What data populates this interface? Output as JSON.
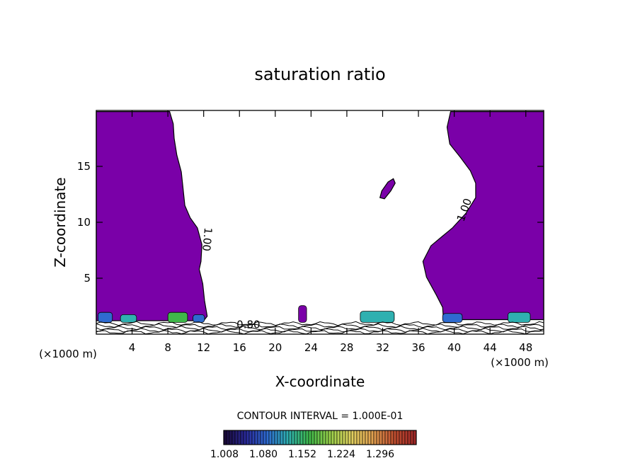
{
  "chart_data": {
    "type": "heatmap",
    "title": "saturation ratio",
    "xlabel": "X-coordinate",
    "ylabel": "Z-coordinate",
    "x_unit_left": "(×1000 m)",
    "x_unit_right": "(×1000 m)",
    "xlim": [
      0,
      50
    ],
    "ylim": [
      0,
      20
    ],
    "x_ticks": [
      4,
      8,
      12,
      16,
      20,
      24,
      28,
      32,
      36,
      40,
      44,
      48
    ],
    "y_ticks": [
      5,
      10,
      15
    ],
    "contour_labels": [
      {
        "text": "1.00",
        "x": 12,
        "y": 8.5,
        "angle": 95
      },
      {
        "text": "1.00",
        "x": 41.5,
        "y": 11,
        "angle": -70
      },
      {
        "text": "0.80",
        "x": 17,
        "y": 0.55,
        "angle": 0
      }
    ],
    "contour_interval_text": "CONTOUR INTERVAL = 1.000E-01",
    "colorbar": {
      "ticks": [
        "1.008",
        "1.080",
        "1.152",
        "1.224",
        "1.296"
      ],
      "colors": [
        "#1a0b3a",
        "#2a2a9a",
        "#2f6bd0",
        "#2fb0b0",
        "#3fb84a",
        "#9ad04a",
        "#e0d060",
        "#e0a050",
        "#c05030",
        "#a02828"
      ]
    },
    "saturated_fill_color": "#7a00a8",
    "left_region": [
      [
        0,
        19.9
      ],
      [
        8.2,
        19.9
      ],
      [
        8.6,
        18.8
      ],
      [
        8.7,
        17.5
      ],
      [
        9.0,
        16.0
      ],
      [
        9.5,
        14.5
      ],
      [
        9.7,
        13.0
      ],
      [
        9.9,
        11.5
      ],
      [
        10.5,
        10.4
      ],
      [
        11.3,
        9.5
      ],
      [
        11.8,
        8.0
      ],
      [
        11.7,
        6.5
      ],
      [
        11.5,
        5.8
      ],
      [
        11.9,
        4.5
      ],
      [
        12.1,
        3.0
      ],
      [
        12.4,
        1.6
      ],
      [
        12.0,
        1.2
      ],
      [
        0,
        1.2
      ]
    ],
    "right_region": [
      [
        50,
        19.9
      ],
      [
        39.6,
        19.9
      ],
      [
        39.2,
        18.5
      ],
      [
        39.5,
        17.0
      ],
      [
        40.7,
        15.8
      ],
      [
        41.8,
        14.6
      ],
      [
        42.4,
        13.5
      ],
      [
        42.4,
        12.2
      ],
      [
        41.3,
        10.8
      ],
      [
        39.8,
        9.5
      ],
      [
        38.6,
        8.7
      ],
      [
        37.4,
        7.9
      ],
      [
        36.5,
        6.5
      ],
      [
        36.9,
        5.1
      ],
      [
        38.0,
        3.5
      ],
      [
        38.7,
        2.4
      ],
      [
        38.8,
        1.3
      ],
      [
        50,
        1.3
      ]
    ],
    "blob": [
      [
        33.2,
        13.9
      ],
      [
        33.4,
        13.5
      ],
      [
        32.9,
        12.8
      ],
      [
        32.2,
        12.1
      ],
      [
        31.7,
        12.2
      ],
      [
        31.9,
        12.8
      ],
      [
        32.6,
        13.6
      ]
    ]
  }
}
